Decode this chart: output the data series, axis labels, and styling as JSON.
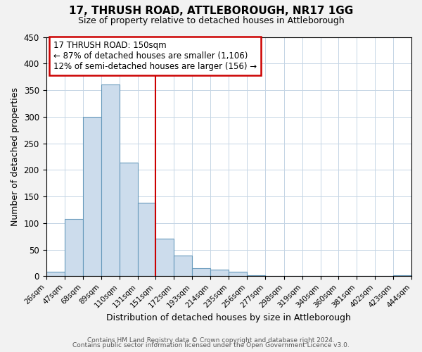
{
  "title": "17, THRUSH ROAD, ATTLEBOROUGH, NR17 1GG",
  "subtitle": "Size of property relative to detached houses in Attleborough",
  "xlabel": "Distribution of detached houses by size in Attleborough",
  "ylabel": "Number of detached properties",
  "bin_edges": [
    26,
    47,
    68,
    89,
    110,
    131,
    151,
    172,
    193,
    214,
    235,
    256,
    277,
    298,
    319,
    340,
    360,
    381,
    402,
    423,
    444
  ],
  "bin_labels": [
    "26sqm",
    "47sqm",
    "68sqm",
    "89sqm",
    "110sqm",
    "131sqm",
    "151sqm",
    "172sqm",
    "193sqm",
    "214sqm",
    "235sqm",
    "256sqm",
    "277sqm",
    "298sqm",
    "319sqm",
    "340sqm",
    "360sqm",
    "381sqm",
    "402sqm",
    "423sqm",
    "444sqm"
  ],
  "counts": [
    9,
    108,
    300,
    360,
    214,
    138,
    70,
    39,
    15,
    12,
    8,
    2,
    0,
    0,
    0,
    0,
    0,
    0,
    0,
    2
  ],
  "bar_color": "#ccdcec",
  "bar_edge_color": "#6699bb",
  "vline_x": 151,
  "vline_color": "#cc0000",
  "annotation_title": "17 THRUSH ROAD: 150sqm",
  "annotation_line1": "← 87% of detached houses are smaller (1,106)",
  "annotation_line2": "12% of semi-detached houses are larger (156) →",
  "annotation_box_color": "#cc0000",
  "ylim": [
    0,
    450
  ],
  "footer1": "Contains HM Land Registry data © Crown copyright and database right 2024.",
  "footer2": "Contains public sector information licensed under the Open Government Licence v3.0.",
  "background_color": "#f2f2f2",
  "plot_background_color": "#ffffff"
}
